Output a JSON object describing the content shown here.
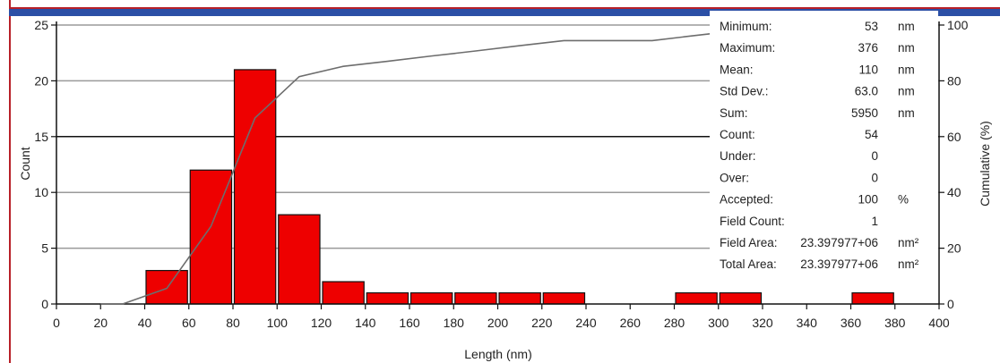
{
  "chart_data": {
    "type": "bar",
    "title": "",
    "xlabel": "Length (nm)",
    "ylabel": "Count",
    "y2label": "Cumulative (%)",
    "xlim": [
      0,
      400
    ],
    "ylim": [
      0,
      25
    ],
    "y2lim": [
      0,
      100
    ],
    "x_ticks": [
      0,
      20,
      40,
      60,
      80,
      100,
      120,
      140,
      160,
      180,
      200,
      220,
      240,
      260,
      280,
      300,
      320,
      340,
      360,
      380,
      400
    ],
    "y_ticks": [
      0,
      5,
      10,
      15,
      20,
      25
    ],
    "y2_ticks": [
      0,
      20,
      40,
      60,
      80,
      100
    ],
    "grid": true,
    "bar_color": "#ee0000",
    "bins": [
      {
        "from": 40,
        "to": 60,
        "count": 3
      },
      {
        "from": 60,
        "to": 80,
        "count": 12
      },
      {
        "from": 80,
        "to": 100,
        "count": 21
      },
      {
        "from": 100,
        "to": 120,
        "count": 8
      },
      {
        "from": 120,
        "to": 140,
        "count": 2
      },
      {
        "from": 140,
        "to": 160,
        "count": 1
      },
      {
        "from": 160,
        "to": 180,
        "count": 1
      },
      {
        "from": 180,
        "to": 200,
        "count": 1
      },
      {
        "from": 200,
        "to": 220,
        "count": 1
      },
      {
        "from": 220,
        "to": 240,
        "count": 1
      },
      {
        "from": 280,
        "to": 300,
        "count": 1
      },
      {
        "from": 300,
        "to": 320,
        "count": 1
      },
      {
        "from": 360,
        "to": 380,
        "count": 1
      }
    ],
    "cumulative": {
      "color": "#6d6d6d",
      "x": [
        20,
        30,
        50,
        70,
        90,
        110,
        130,
        150,
        170,
        190,
        210,
        230,
        250,
        270,
        290,
        310,
        330,
        350,
        370,
        380
      ],
      "y": [
        0,
        0,
        5.6,
        27.8,
        66.7,
        81.5,
        85.2,
        87.0,
        88.9,
        90.7,
        92.6,
        94.4,
        94.4,
        94.4,
        96.3,
        98.1,
        98.1,
        98.1,
        100,
        100
      ]
    }
  },
  "stats": [
    {
      "label": "Minimum:",
      "value": "53",
      "unit": "nm"
    },
    {
      "label": "Maximum:",
      "value": "376",
      "unit": "nm"
    },
    {
      "label": "Mean:",
      "value": "110",
      "unit": "nm"
    },
    {
      "label": "Std Dev.:",
      "value": "63.0",
      "unit": "nm"
    },
    {
      "label": "Sum:",
      "value": "5950",
      "unit": "nm"
    },
    {
      "label": "Count:",
      "value": "54",
      "unit": ""
    },
    {
      "label": "Under:",
      "value": "0",
      "unit": ""
    },
    {
      "label": "Over:",
      "value": "0",
      "unit": ""
    },
    {
      "label": "Accepted:",
      "value": "100",
      "unit": "%"
    },
    {
      "label": "Field Count:",
      "value": "1",
      "unit": ""
    },
    {
      "label": "Field Area:",
      "value": "23.397977+06",
      "unit": "nm²"
    },
    {
      "label": "Total Area:",
      "value": "23.397977+06",
      "unit": "nm²"
    }
  ]
}
